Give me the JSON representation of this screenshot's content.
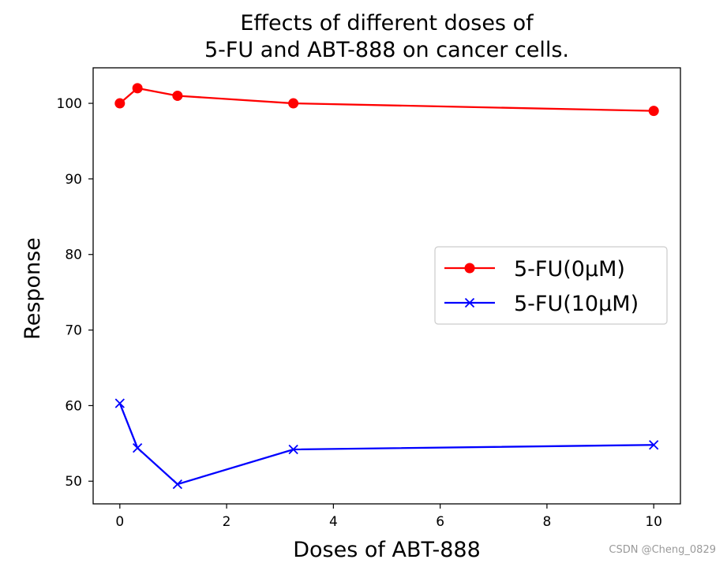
{
  "chart_data": {
    "type": "line",
    "title": [
      "Effects of different doses of",
      "5-FU and ABT-888 on cancer cells."
    ],
    "xlabel": "Doses of ABT-888",
    "ylabel": "Response",
    "xlim": [
      -0.5,
      10.5
    ],
    "ylim": [
      47,
      104.7
    ],
    "xticks": [
      0,
      2,
      4,
      6,
      8,
      10
    ],
    "yticks": [
      50,
      60,
      70,
      80,
      90,
      100
    ],
    "x": [
      0,
      0.33,
      1.08,
      3.25,
      10
    ],
    "series": [
      {
        "name": "5-FU(0μM)",
        "values": [
          100,
          102,
          101,
          100,
          99
        ],
        "color": "#ff0000",
        "marker": "circle"
      },
      {
        "name": "5-FU(10μM)",
        "values": [
          60.3,
          54.4,
          49.6,
          54.2,
          54.8
        ],
        "color": "#0000ff",
        "marker": "x"
      }
    ],
    "legend": "center-right",
    "grid": false
  },
  "watermark": "CSDN @Cheng_0829"
}
